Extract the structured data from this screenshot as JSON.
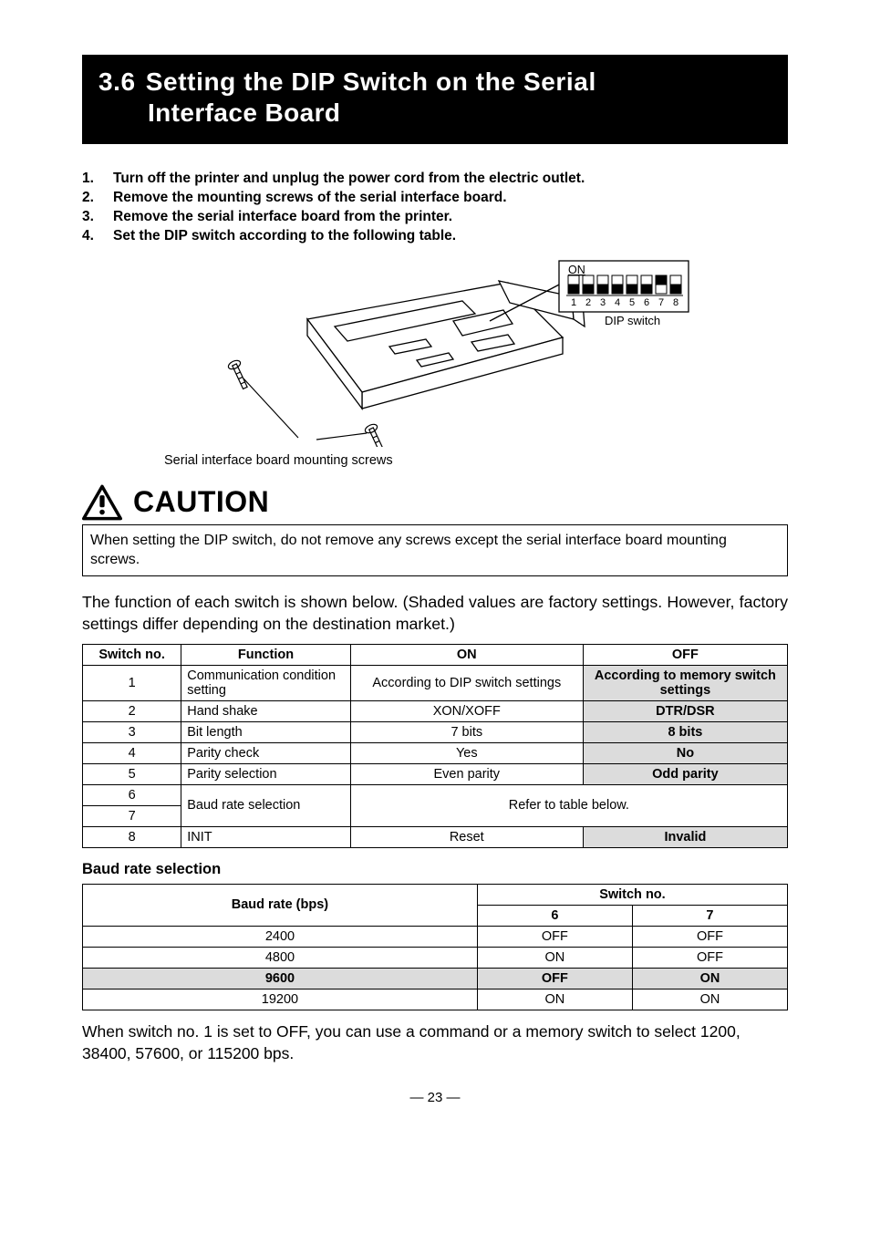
{
  "section": {
    "number": "3.6",
    "title_line1": "Setting the DIP Switch on the Serial",
    "title_line2": "Interface Board"
  },
  "steps": [
    "Turn off the printer and unplug the power cord from the electric outlet.",
    "Remove the mounting screws of the serial interface board.",
    "Remove the serial interface board from the printer.",
    "Set the DIP switch according to the following table."
  ],
  "diagram": {
    "dip_label_on": "ON",
    "dip_numbers": [
      "1",
      "2",
      "3",
      "4",
      "5",
      "6",
      "7",
      "8"
    ],
    "dip_switch_label": "DIP switch",
    "caption": "Serial interface board mounting screws",
    "board_outline_color": "#000000",
    "board_fill_color": "#ffffff"
  },
  "caution": {
    "heading": "CAUTION",
    "text": "When setting the DIP switch, do not remove any screws except the serial interface board mounting screws."
  },
  "function_para": "The function of each switch is shown below. (Shaded values are factory settings. However, factory settings differ depending on the destination market.)",
  "fn_table": {
    "headers": [
      "Switch no.",
      "Function",
      "ON",
      "OFF"
    ],
    "rows": [
      {
        "no": "1",
        "func": "Communication condition setting",
        "on": "According to DIP switch settings",
        "off": "According to memory switch settings",
        "off_bold": true,
        "off_shade": true
      },
      {
        "no": "2",
        "func": "Hand shake",
        "on": "XON/XOFF",
        "off": "DTR/DSR",
        "off_bold": true,
        "off_shade": true
      },
      {
        "no": "3",
        "func": "Bit length",
        "on": "7 bits",
        "off": "8 bits",
        "off_bold": true,
        "off_shade": true
      },
      {
        "no": "4",
        "func": "Parity check",
        "on": "Yes",
        "off": "No",
        "off_bold": true,
        "off_shade": true
      },
      {
        "no": "5",
        "func": "Parity selection",
        "on": "Even parity",
        "off": "Odd parity",
        "off_bold": true,
        "off_shade": true
      }
    ],
    "baud_group": {
      "nos": [
        "6",
        "7"
      ],
      "func": "Baud rate selection",
      "merged": "Refer to table below."
    },
    "row8": {
      "no": "8",
      "func": "INIT",
      "on": "Reset",
      "off": "Invalid",
      "off_bold": true,
      "off_shade": true
    },
    "col_widths": [
      "14%",
      "24%",
      "33%",
      "29%"
    ],
    "shade_color": "#dcdcdc",
    "border_color": "#000000"
  },
  "baud_heading": "Baud rate selection",
  "baud_table": {
    "header_top": "Switch no.",
    "header_left": "Baud rate (bps)",
    "sub_headers": [
      "6",
      "7"
    ],
    "rows": [
      {
        "bps": "2400",
        "s6": "OFF",
        "s7": "OFF",
        "shade": false
      },
      {
        "bps": "4800",
        "s6": "ON",
        "s7": "OFF",
        "shade": false
      },
      {
        "bps": "9600",
        "s6": "OFF",
        "s7": "ON",
        "shade": true
      },
      {
        "bps": "19200",
        "s6": "ON",
        "s7": "ON",
        "shade": false
      }
    ],
    "col_widths": [
      "56%",
      "22%",
      "22%"
    ]
  },
  "note_para": "When switch no. 1 is set to OFF, you can use a command or a memory switch to select 1200, 38400, 57600, or 115200 bps.",
  "page_number": "— 23 —"
}
